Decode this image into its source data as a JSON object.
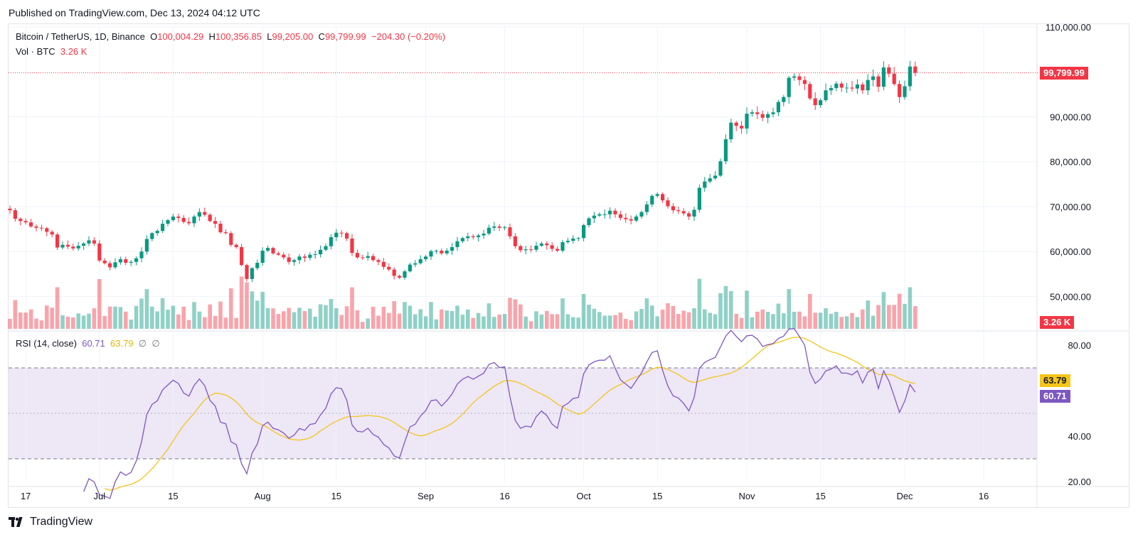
{
  "header": {
    "published": "Published on TradingView.com, Dec 13, 2024 04:12 UTC"
  },
  "legend": {
    "symbol": "Bitcoin / TetherUS, 1D, Binance",
    "o_label": "O",
    "o_value": "100,004.29",
    "h_label": "H",
    "h_value": "100,356.85",
    "l_label": "L",
    "l_value": "99,205.00",
    "c_label": "C",
    "c_value": "99,799.99",
    "change": "−204.30 (−0.20%)",
    "vol_label": "Vol · BTC",
    "vol_value": "3.26 K"
  },
  "rsi_legend": {
    "label": "RSI (14, close)",
    "rsi_value": "60.71",
    "ma_value": "63.79",
    "extra1": "∅",
    "extra2": "∅"
  },
  "price_tag": "99,799.99",
  "vol_tag": "3.26 K",
  "rsi_tag": "60.71",
  "rsi_ma_tag": "63.79",
  "colors": {
    "up": "#089981",
    "down": "#f23645",
    "rsi": "#7e57c2",
    "rsi_ma": "#f5c518",
    "band": "#ede7f6"
  },
  "footer": {
    "brand": "TradingView"
  },
  "chart_data": {
    "type": "candlestick",
    "symbol": "Bitcoin / TetherUS",
    "interval": "1D",
    "exchange": "Binance",
    "x_tick_labels": [
      "17",
      "Jul",
      "15",
      "Aug",
      "15",
      "Sep",
      "16",
      "Oct",
      "15",
      "Nov",
      "15",
      "Dec",
      "16"
    ],
    "x_tick_days": [
      3,
      17,
      31,
      48,
      62,
      79,
      94,
      109,
      123,
      140,
      154,
      170,
      185
    ],
    "price_ticks": [
      110000,
      90000,
      80000,
      70000,
      60000,
      50000
    ],
    "price_tick_labels": [
      "110,000.00",
      "90,000.00",
      "80,000.00",
      "70,000.00",
      "60,000.00",
      "50,000.00"
    ],
    "price_range": [
      42800,
      110000
    ],
    "close_series_daily": [
      69200,
      67300,
      66800,
      66500,
      65600,
      65300,
      65200,
      64400,
      63800,
      60900,
      61500,
      61100,
      60700,
      61300,
      61800,
      62500,
      61800,
      58000,
      57400,
      56500,
      57600,
      58300,
      57500,
      57700,
      58500,
      60000,
      62800,
      64100,
      64600,
      66200,
      67000,
      67800,
      67500,
      66600,
      66300,
      67800,
      68800,
      68200,
      66800,
      66200,
      64300,
      64100,
      61500,
      61000,
      57000,
      53900,
      56300,
      57500,
      60200,
      60800,
      59600,
      59300,
      58700,
      57700,
      58100,
      58900,
      58600,
      59300,
      59400,
      60400,
      61200,
      63200,
      64200,
      64100,
      62900,
      59700,
      58700,
      58600,
      59000,
      58100,
      57700,
      56600,
      56000,
      54600,
      54200,
      55600,
      57100,
      57400,
      58300,
      58900,
      60100,
      60200,
      59600,
      60200,
      61000,
      62300,
      63000,
      63400,
      63200,
      63600,
      64000,
      65300,
      65600,
      65300,
      65400,
      63400,
      61200,
      60300,
      60500,
      60400,
      61300,
      61800,
      61400,
      60600,
      60200,
      62100,
      62400,
      62900,
      63000,
      65900,
      67400,
      68000,
      68300,
      68300,
      69100,
      68300,
      67500,
      67200,
      66900,
      67800,
      68800,
      70500,
      72400,
      72800,
      71400,
      70100,
      69200,
      69000,
      68500,
      67800,
      69300,
      74200,
      75600,
      76300,
      76900,
      80100,
      85000,
      88700,
      88000,
      87400,
      90700,
      91000,
      90600,
      89800,
      90600,
      91000,
      93300,
      94400,
      98700,
      99000,
      98200,
      97300,
      94100,
      92600,
      93700,
      95900,
      96400,
      97400,
      96500,
      96500,
      96300,
      97200,
      95900,
      98200,
      99000,
      96700,
      101000,
      99600,
      97300,
      94400,
      96800,
      101200,
      99800
    ],
    "rsi_range": [
      20,
      85
    ],
    "rsi_ticks": [
      80,
      40,
      20
    ],
    "rsi_tick_labels": [
      "80.00",
      "40.00",
      "20.00"
    ],
    "rsi_band": [
      30,
      70
    ],
    "rsi_middle": 50,
    "rsi_last": 60.71,
    "rsi_ma_last": 63.79,
    "volume_last": "3.26 K"
  }
}
